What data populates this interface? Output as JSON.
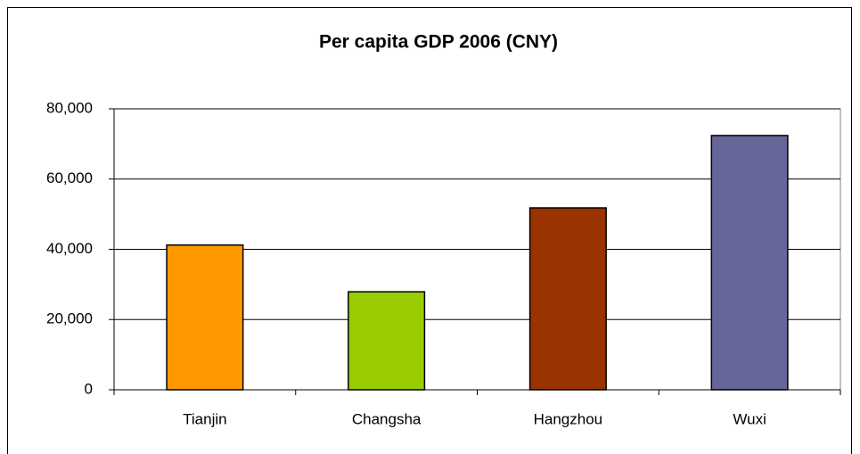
{
  "chart_data": {
    "type": "bar",
    "title": "Per capita GDP 2006 (CNY)",
    "categories": [
      "Tianjin",
      "Changsha",
      "Hangzhou",
      "Wuxi"
    ],
    "values": [
      41200,
      27900,
      51800,
      72400
    ],
    "colors": [
      "#ff9900",
      "#99cc00",
      "#993300",
      "#666699"
    ],
    "ylim": [
      0,
      80000
    ],
    "yticks": [
      0,
      {
        "value": 20000,
        "label": "20,000"
      },
      {
        "value": 40000,
        "label": "40,000"
      },
      {
        "value": 60000,
        "label": "60,000"
      },
      {
        "value": 80000,
        "label": "80,000"
      }
    ],
    "grid": true
  }
}
